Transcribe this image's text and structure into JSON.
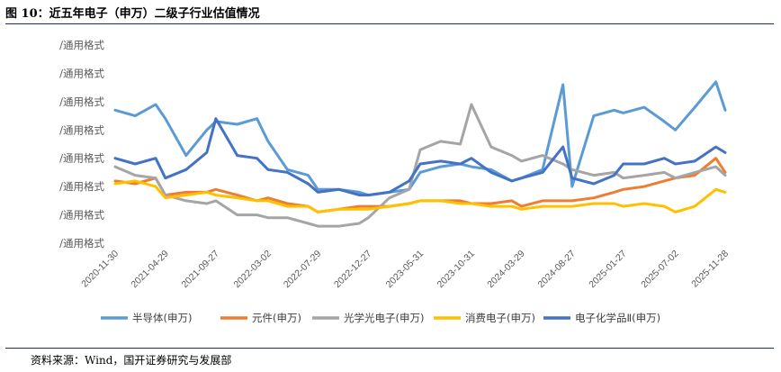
{
  "figure": {
    "title": "图 10：近五年电子（申万）二级子行业估值情况",
    "source": "资料来源：Wind，国开证券研究与发展部"
  },
  "chart_data": {
    "type": "line",
    "title": "",
    "ylabel": "",
    "xlabel": "",
    "y_tick_labels": [
      "/通用格式",
      "/通用格式",
      "/通用格式",
      "/通用格式",
      "/通用格式",
      "/通用格式",
      "/通用格式",
      "/通用格式"
    ],
    "x_tick_labels": [
      "2020-11-30",
      "2021-04-29",
      "2021-09-27",
      "2022-03-02",
      "2022-07-29",
      "2022-12-27",
      "2023-05-31",
      "2023-10-31",
      "2024-03-29",
      "2024-08-27",
      "2025-01-27",
      "2025-07-02",
      "2025-11-28"
    ],
    "ylim": [
      0,
      7
    ],
    "grid": false,
    "legend_position": "bottom",
    "x": [
      "2020-11-30",
      "2021-01-29",
      "2021-03-31",
      "2021-04-29",
      "2021-06-30",
      "2021-08-31",
      "2021-09-27",
      "2021-11-30",
      "2022-01-28",
      "2022-03-02",
      "2022-04-29",
      "2022-06-30",
      "2022-07-29",
      "2022-09-30",
      "2022-11-30",
      "2022-12-27",
      "2023-02-28",
      "2023-04-28",
      "2023-05-31",
      "2023-07-31",
      "2023-09-28",
      "2023-10-31",
      "2023-12-29",
      "2024-02-29",
      "2024-03-29",
      "2024-05-31",
      "2024-07-31",
      "2024-08-27",
      "2024-10-31",
      "2024-12-31",
      "2025-01-27",
      "2025-03-31",
      "2025-05-30",
      "2025-07-02",
      "2025-08-29",
      "2025-10-31",
      "2025-11-28"
    ],
    "series": [
      {
        "name": "半导体(申万)",
        "color": "#5b9bd5",
        "values": [
          4.7,
          4.5,
          4.9,
          4.4,
          3.1,
          4.0,
          4.3,
          4.2,
          4.4,
          3.6,
          2.6,
          2.4,
          1.9,
          1.9,
          1.8,
          1.7,
          1.8,
          1.9,
          2.5,
          2.7,
          2.8,
          2.7,
          2.6,
          2.2,
          2.3,
          2.6,
          5.6,
          2.0,
          4.5,
          4.7,
          4.6,
          4.8,
          4.3,
          4.0,
          4.8,
          5.7,
          4.7
        ]
      },
      {
        "name": "元件(申万)",
        "color": "#ed7d31",
        "values": [
          2.2,
          2.1,
          2.3,
          1.7,
          1.8,
          1.8,
          1.9,
          1.7,
          1.5,
          1.6,
          1.4,
          1.3,
          1.1,
          1.2,
          1.3,
          1.3,
          1.3,
          1.4,
          1.5,
          1.5,
          1.5,
          1.4,
          1.4,
          1.5,
          1.3,
          1.5,
          1.5,
          1.5,
          1.6,
          1.8,
          1.9,
          2.0,
          2.2,
          2.3,
          2.4,
          3.0,
          2.5
        ]
      },
      {
        "name": "光学光电子(申万)",
        "color": "#a5a5a5",
        "values": [
          2.7,
          2.4,
          2.3,
          1.7,
          1.5,
          1.4,
          1.5,
          1.0,
          1.0,
          0.9,
          0.9,
          0.7,
          0.6,
          0.6,
          0.7,
          0.9,
          1.6,
          1.9,
          3.3,
          3.6,
          3.5,
          4.9,
          3.4,
          3.1,
          2.9,
          3.1,
          2.8,
          2.6,
          2.4,
          2.5,
          2.3,
          2.4,
          2.5,
          2.3,
          2.5,
          2.7,
          2.4
        ]
      },
      {
        "name": "消费电子(申万)",
        "color": "#ffc000",
        "values": [
          2.1,
          2.2,
          2.0,
          1.6,
          1.7,
          1.8,
          1.7,
          1.6,
          1.5,
          1.5,
          1.3,
          1.3,
          1.1,
          1.2,
          1.2,
          1.2,
          1.3,
          1.4,
          1.5,
          1.5,
          1.4,
          1.4,
          1.3,
          1.3,
          1.2,
          1.3,
          1.3,
          1.3,
          1.4,
          1.4,
          1.3,
          1.4,
          1.3,
          1.1,
          1.3,
          1.9,
          1.8
        ]
      },
      {
        "name": "电子化学品Ⅱ(申万)",
        "color": "#4472c4",
        "values": [
          3.0,
          2.8,
          3.0,
          2.3,
          2.6,
          3.2,
          4.4,
          3.1,
          3.0,
          2.6,
          2.5,
          2.1,
          1.8,
          1.9,
          1.7,
          1.7,
          1.8,
          2.2,
          2.8,
          2.9,
          2.8,
          3.0,
          2.5,
          2.2,
          2.3,
          2.5,
          3.4,
          2.3,
          2.1,
          2.4,
          2.8,
          2.8,
          3.0,
          2.8,
          2.9,
          3.4,
          3.2
        ]
      }
    ]
  }
}
